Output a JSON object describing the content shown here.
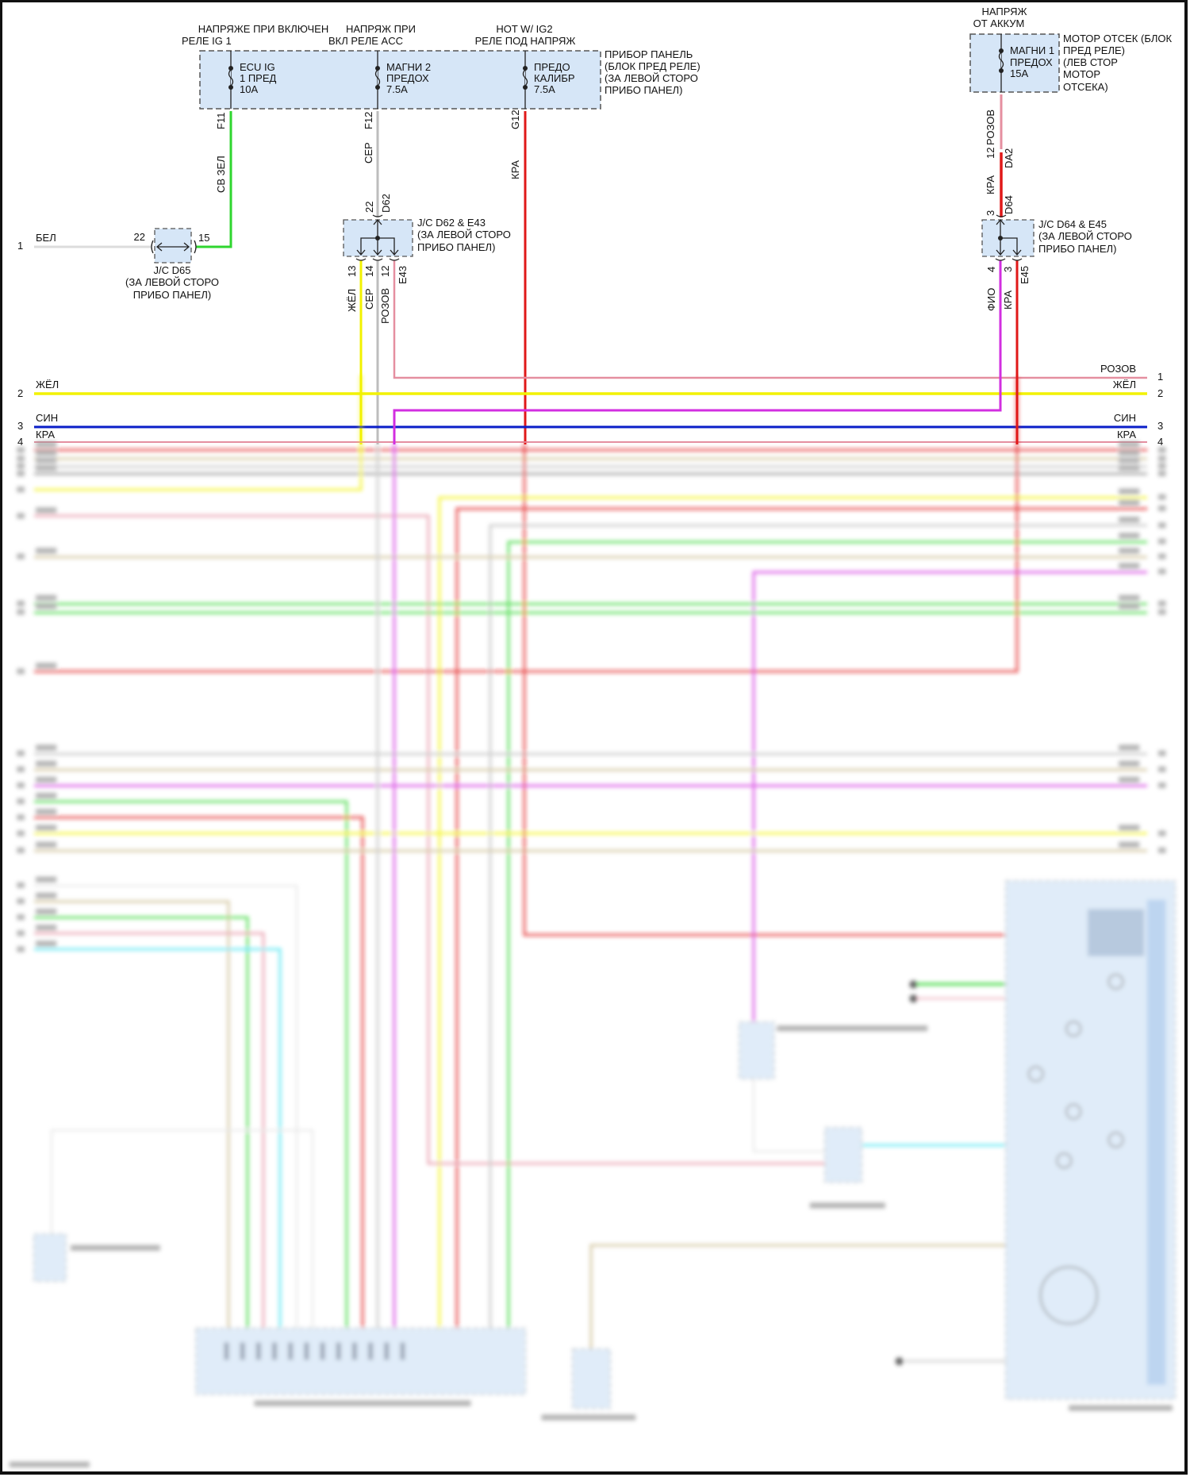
{
  "colors": {
    "box_fill": "#d6e6f7",
    "pink": "#e58fa0",
    "yellow": "#f2f200",
    "blue": "#0a1ec8",
    "red": "#e01818",
    "green": "#2fd62f",
    "gray": "#bdbdbd",
    "white_wire": "#dcdcdc",
    "violet": "#d22ee0",
    "tan": "#c9b98a",
    "cyan": "#3fe3f0"
  },
  "sources": {
    "ig1": {
      "line1": "НАПРЯЖЕ ПРИ ВКЛЮЧЕН",
      "line2": "РЕЛЕ IG 1"
    },
    "acc": {
      "line1": "НАПРЯЖ ПРИ",
      "line2": "ВКЛ РЕЛЕ ACC"
    },
    "ig2": {
      "line1": "HOT W/ IG2",
      "line2": "РЕЛЕ ПОД НАПРЯЖ"
    },
    "batt": {
      "line1": "НАПРЯЖ",
      "line2": "ОТ АККУМ"
    }
  },
  "fuse_box_dash": {
    "name": [
      "ПРИБОР ПАНЕЛЬ",
      "(БЛОК ПРЕД РЕЛЕ)",
      "(ЗА ЛЕВОЙ СТОРО",
      "ПРИБО ПАНЕЛ)"
    ],
    "fuses": [
      {
        "l1": "ECU IG",
        "l2": "1 ПРЕД",
        "l3": "10A",
        "pin": "F11",
        "wire": "СВ ЗЕЛ"
      },
      {
        "l1": "МАГНИ 2",
        "l2": "ПРЕДОХ",
        "l3": "7.5A",
        "pin": "F12",
        "wire": "СЕР"
      },
      {
        "l1": "ПРЕДО",
        "l2": "КАЛИБР",
        "l3": "7.5A",
        "pin": "G12",
        "wire": "КРА"
      }
    ]
  },
  "fuse_box_engine": {
    "name": [
      "МОТОР ОТСЕК (БЛОК",
      "ПРЕД РЕЛЕ)",
      "(ЛЕВ СТОР",
      "МОТОР",
      "ОТСЕКА)"
    ],
    "fuse": {
      "l1": "МАГНИ 1",
      "l2": "ПРЕДОХ",
      "l3": "15A"
    },
    "wire_top": "РОЗОВ",
    "pin_da2": "12",
    "conn_da2": "DA2",
    "wire_mid": "КРА",
    "pin_d64": "3",
    "conn_d64": "D64"
  },
  "jc_d65": {
    "name": [
      "J/C D65",
      "(ЗА ЛЕВОЙ СТОРО",
      "ПРИБО ПАНЕЛ)"
    ],
    "pin_left": "22",
    "pin_right": "15",
    "wire_left": "БЕЛ",
    "row": "1"
  },
  "jc_d62": {
    "name": [
      "J/C D62 & E43",
      "(ЗА ЛЕВОЙ СТОРО",
      "ПРИБО ПАНЕЛ)"
    ],
    "pin_in": "22",
    "conn_in": "D62",
    "outs": [
      {
        "pin": "13",
        "wire": "ЖЁЛ"
      },
      {
        "pin": "14",
        "wire": "СЕР"
      },
      {
        "pin": "12",
        "wire": "РОЗОВ"
      }
    ],
    "conn_out": "E43"
  },
  "jc_d64": {
    "name": [
      "J/C D64 & E45",
      "(ЗА ЛЕВОЙ СТОРО",
      "ПРИБО ПАНЕЛ)"
    ],
    "outs": [
      {
        "pin": "4",
        "wire": "ФИО"
      },
      {
        "pin": "3",
        "wire": "КРА"
      }
    ],
    "conn_out": "E45"
  },
  "rows_left": [
    {
      "num": "2",
      "wire": "ЖЁЛ"
    },
    {
      "num": "3",
      "wire": "СИН"
    },
    {
      "num": "4",
      "wire": "КРА"
    }
  ],
  "rows_right": [
    {
      "num": "1",
      "wire": "РОЗОВ"
    },
    {
      "num": "2",
      "wire": "ЖЁЛ"
    },
    {
      "num": "3",
      "wire": "СИН"
    },
    {
      "num": "4",
      "wire": "КРА"
    }
  ]
}
